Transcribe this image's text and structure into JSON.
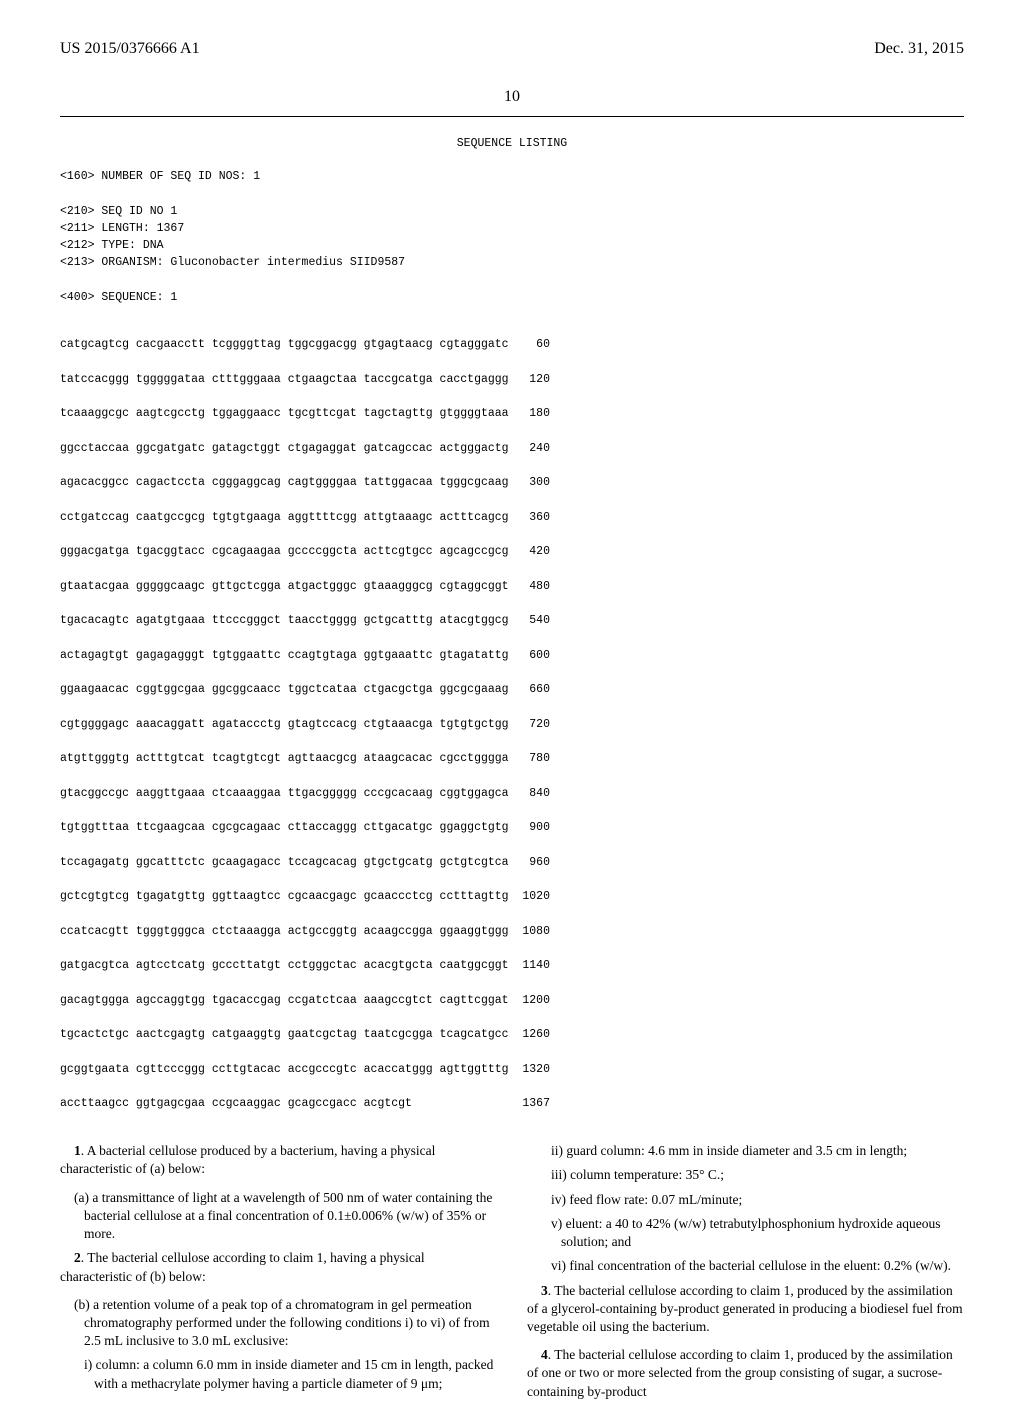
{
  "header": {
    "pub_number": "US 2015/0376666 A1",
    "pub_date": "Dec. 31, 2015"
  },
  "page_number": "10",
  "sequence": {
    "title": "SEQUENCE LISTING",
    "meta": [
      "<160> NUMBER OF SEQ ID NOS: 1",
      "",
      "<210> SEQ ID NO 1",
      "<211> LENGTH: 1367",
      "<212> TYPE: DNA",
      "<213> ORGANISM: Gluconobacter intermedius SIID9587",
      "",
      "<400> SEQUENCE: 1"
    ],
    "rows": [
      {
        "seq": "catgcagtcg cacgaacctt tcggggttag tggcggacgg gtgagtaacg cgtagggatc",
        "num": "60"
      },
      {
        "seq": "tatccacggg tgggggataa ctttgggaaa ctgaagctaa taccgcatga cacctgaggg",
        "num": "120"
      },
      {
        "seq": "tcaaaggcgc aagtcgcctg tggaggaacc tgcgttcgat tagctagttg gtggggtaaa",
        "num": "180"
      },
      {
        "seq": "ggcctaccaa ggcgatgatc gatagctggt ctgagaggat gatcagccac actgggactg",
        "num": "240"
      },
      {
        "seq": "agacacggcc cagactccta cgggaggcag cagtggggaa tattggacaa tgggcgcaag",
        "num": "300"
      },
      {
        "seq": "cctgatccag caatgccgcg tgtgtgaaga aggttttcgg attgtaaagc actttcagcg",
        "num": "360"
      },
      {
        "seq": "gggacgatga tgacggtacc cgcagaagaa gccccggcta acttcgtgcc agcagccgcg",
        "num": "420"
      },
      {
        "seq": "gtaatacgaa gggggcaagc gttgctcgga atgactgggc gtaaagggcg cgtaggcggt",
        "num": "480"
      },
      {
        "seq": "tgacacagtc agatgtgaaa ttcccgggct taacctgggg gctgcatttg atacgtggcg",
        "num": "540"
      },
      {
        "seq": "actagagtgt gagagagggt tgtggaattc ccagtgtaga ggtgaaattc gtagatattg",
        "num": "600"
      },
      {
        "seq": "ggaagaacac cggtggcgaa ggcggcaacc tggctcataa ctgacgctga ggcgcgaaag",
        "num": "660"
      },
      {
        "seq": "cgtggggagc aaacaggatt agataccctg gtagtccacg ctgtaaacga tgtgtgctgg",
        "num": "720"
      },
      {
        "seq": "atgttgggtg actttgtcat tcagtgtcgt agttaacgcg ataagcacac cgcctgggga",
        "num": "780"
      },
      {
        "seq": "gtacggccgc aaggttgaaa ctcaaaggaa ttgacggggg cccgcacaag cggtggagca",
        "num": "840"
      },
      {
        "seq": "tgtggtttaa ttcgaagcaa cgcgcagaac cttaccaggg cttgacatgc ggaggctgtg",
        "num": "900"
      },
      {
        "seq": "tccagagatg ggcatttctc gcaagagacc tccagcacag gtgctgcatg gctgtcgtca",
        "num": "960"
      },
      {
        "seq": "gctcgtgtcg tgagatgttg ggttaagtcc cgcaacgagc gcaaccctcg cctttagttg",
        "num": "1020"
      },
      {
        "seq": "ccatcacgtt tgggtgggca ctctaaagga actgccggtg acaagccgga ggaaggtggg",
        "num": "1080"
      },
      {
        "seq": "gatgacgtca agtcctcatg gcccttatgt cctgggctac acacgtgcta caatggcggt",
        "num": "1140"
      },
      {
        "seq": "gacagtggga agccaggtgg tgacaccgag ccgatctcaa aaagccgtct cagttcggat",
        "num": "1200"
      },
      {
        "seq": "tgcactctgc aactcgagtg catgaaggtg gaatcgctag taatcgcgga tcagcatgcc",
        "num": "1260"
      },
      {
        "seq": "gcggtgaata cgttcccggg ccttgtacac accgcccgtc acaccatggg agttggtttg",
        "num": "1320"
      },
      {
        "seq": "accttaagcc ggtgagcgaa ccgcaaggac gcagccgacc acgtcgt",
        "num": "1367"
      }
    ]
  },
  "claims": {
    "left": [
      {
        "type": "main",
        "text": "1. A bacterial cellulose produced by a bacterium, having a physical characteristic of (a) below:"
      },
      {
        "type": "sub",
        "text": "(a) a transmittance of light at a wavelength of 500 nm of water containing the bacterial cellulose at a final concentration of 0.1±0.006% (w/w) of 35% or more."
      },
      {
        "type": "main",
        "text": "2. The bacterial cellulose according to claim 1, having a physical characteristic of (b) below:"
      },
      {
        "type": "sub",
        "text": "(b) a retention volume of a peak top of a chromatogram in gel permeation chromatography performed under the following conditions i) to vi) of from 2.5 mL inclusive to 3.0 mL exclusive:"
      },
      {
        "type": "subi",
        "text": "i) column: a column 6.0 mm in inside diameter and 15 cm in length, packed with a methacrylate polymer having a particle diameter of 9 μm;"
      }
    ],
    "right": [
      {
        "type": "subi",
        "text": "ii) guard column: 4.6 mm in inside diameter and 3.5 cm in length;"
      },
      {
        "type": "subi",
        "text": "iii) column temperature: 35° C.;"
      },
      {
        "type": "subi",
        "text": "iv) feed flow rate: 0.07 mL/minute;"
      },
      {
        "type": "subi",
        "text": "v) eluent: a 40 to 42% (w/w) tetrabutylphosphonium hydroxide aqueous solution; and"
      },
      {
        "type": "subi",
        "text": "vi) final concentration of the bacterial cellulose in the eluent: 0.2% (w/w)."
      },
      {
        "type": "main",
        "text": "3. The bacterial cellulose according to claim 1, produced by the assimilation of a glycerol-containing by-product generated in producing a biodiesel fuel from vegetable oil using the bacterium."
      },
      {
        "type": "main",
        "text": "4. The bacterial cellulose according to claim 1, produced by the assimilation of one or two or more selected from the group consisting of sugar, a sucrose-containing by-product"
      }
    ]
  }
}
